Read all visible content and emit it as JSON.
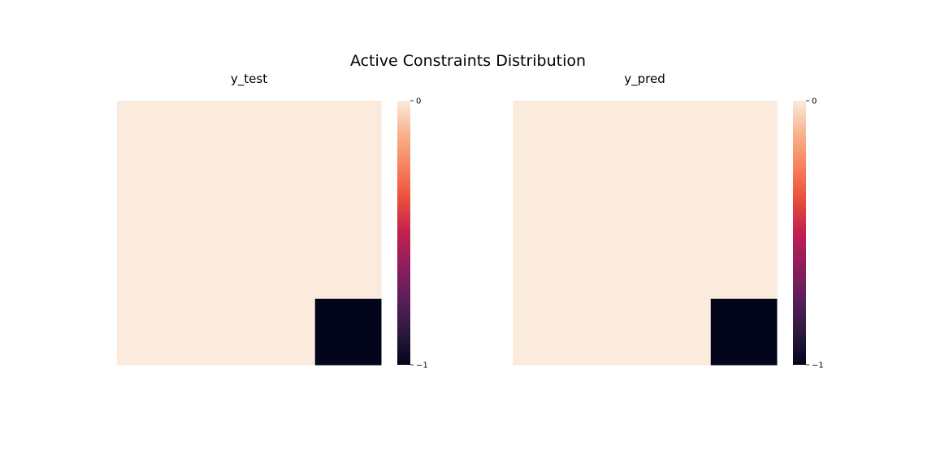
{
  "suptitle": "Active Constraints Distribution",
  "chart_data": [
    {
      "type": "heatmap",
      "title": "y_test",
      "matrix_shape": [
        4,
        4
      ],
      "values": [
        [
          0,
          0,
          0,
          0
        ],
        [
          0,
          0,
          0,
          0
        ],
        [
          0,
          0,
          0,
          0
        ],
        [
          0,
          0,
          0,
          -1
        ]
      ],
      "colorbar": {
        "min": -1,
        "max": 0,
        "ticks": [
          0,
          -1
        ],
        "tick_labels": [
          "0",
          "−1"
        ]
      },
      "colormap": "rocket"
    },
    {
      "type": "heatmap",
      "title": "y_pred",
      "matrix_shape": [
        4,
        4
      ],
      "values": [
        [
          0,
          0,
          0,
          0
        ],
        [
          0,
          0,
          0,
          0
        ],
        [
          0,
          0,
          0,
          0
        ],
        [
          0,
          0,
          0,
          -1
        ]
      ],
      "colorbar": {
        "min": -1,
        "max": 0,
        "ticks": [
          0,
          -1
        ],
        "tick_labels": [
          "0",
          "−1"
        ]
      },
      "colormap": "rocket"
    }
  ],
  "colors": {
    "high": "#faebdd",
    "low": "#03051a",
    "colormap_stops": [
      "#03051a",
      "#2b1a3f",
      "#5c1e5a",
      "#8f1d5d",
      "#c2204f",
      "#ea4d3c",
      "#f6825c",
      "#f8b28d",
      "#faebdd"
    ]
  }
}
